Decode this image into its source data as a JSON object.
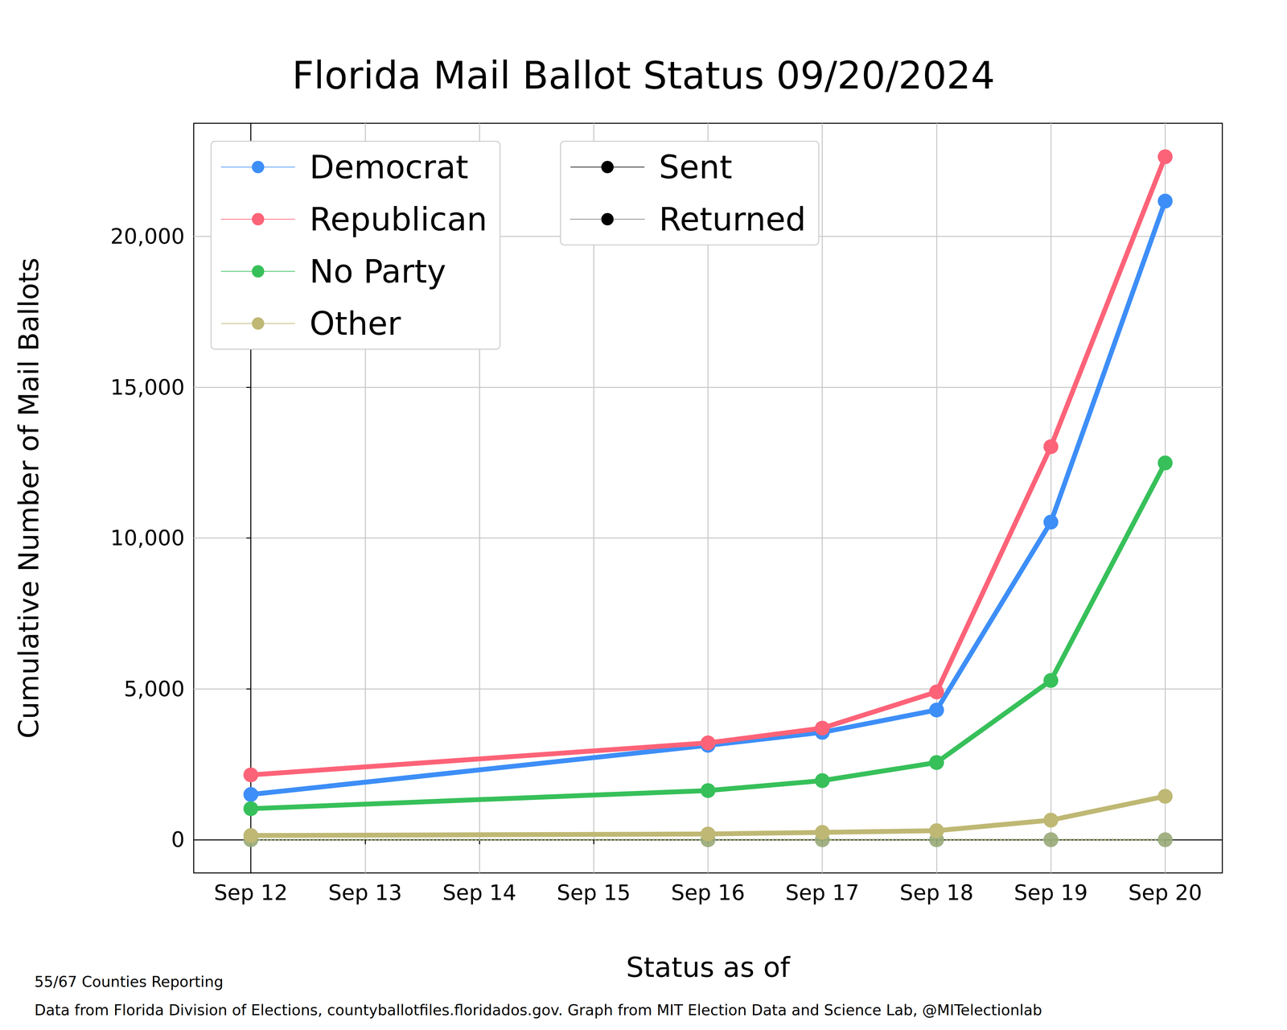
{
  "chart_data": {
    "type": "line",
    "title": "Florida Mail Ballot Status 09/20/2024",
    "xlabel": "Status as of",
    "ylabel": "Cumulative Number of Mail Ballots",
    "notes": [
      "55/67 Counties Reporting",
      "Data from Florida Division of Elections, countyballotfiles.floridados.gov. Graph from MIT Election Data and Science Lab, @MITelectionlab"
    ],
    "categories": [
      "Sep 12",
      "Sep 13",
      "Sep 14",
      "Sep 15",
      "Sep 16",
      "Sep 17",
      "Sep 18",
      "Sep 19",
      "Sep 20"
    ],
    "series": [
      {
        "name": "Democrat",
        "color": "#3d8ef7",
        "values": [
          1500,
          null,
          null,
          null,
          3130,
          3560,
          4300,
          10530,
          21170
        ],
        "returned": [
          0,
          null,
          null,
          null,
          0,
          0,
          0,
          0,
          0
        ]
      },
      {
        "name": "Republican",
        "color": "#fd6378",
        "values": [
          2150,
          null,
          null,
          null,
          3210,
          3700,
          4900,
          13030,
          22640
        ],
        "returned": [
          0,
          null,
          null,
          null,
          0,
          0,
          0,
          0,
          0
        ]
      },
      {
        "name": "No Party",
        "color": "#37c05a",
        "values": [
          1030,
          null,
          null,
          null,
          1630,
          1960,
          2560,
          5280,
          12490
        ],
        "returned": [
          0,
          null,
          null,
          null,
          0,
          0,
          0,
          0,
          0
        ]
      },
      {
        "name": "Other",
        "color": "#bfb874",
        "values": [
          140,
          null,
          null,
          null,
          190,
          245,
          300,
          650,
          1440
        ],
        "returned": [
          0,
          null,
          null,
          null,
          0,
          0,
          0,
          0,
          0
        ]
      }
    ],
    "status_legend": [
      {
        "name": "Sent",
        "line_style": "solid",
        "color": "#000000"
      },
      {
        "name": "Returned",
        "line_style": "dotted",
        "color": "#000000"
      }
    ],
    "marker": "circle",
    "ylim": [
      -1100,
      23750
    ],
    "yticks": [
      0,
      {
        "value": 5000,
        "label": "5,000"
      },
      {
        "value": 10000,
        "label": "10,000"
      },
      {
        "value": 15000,
        "label": "15,000"
      },
      {
        "value": 20000,
        "label": "20,000"
      }
    ],
    "grid": true,
    "legend": "upper left"
  }
}
